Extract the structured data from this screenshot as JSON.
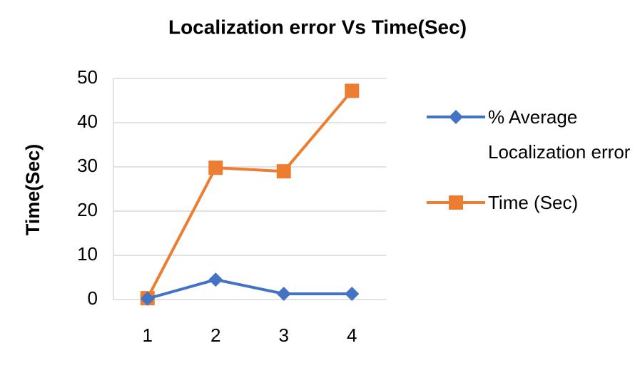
{
  "chart_data": {
    "type": "line",
    "title": "Localization error Vs Time(Sec)",
    "y_label": "Time(Sec)",
    "categories": [
      "1",
      "2",
      "3",
      "4"
    ],
    "series": [
      {
        "name": "% Average Localization error",
        "color": "#4472c4",
        "marker": "diamond",
        "values": [
          0.2,
          4.5,
          1.3,
          1.3
        ]
      },
      {
        "name": "Time (Sec)",
        "color": "#ed7d31",
        "marker": "square",
        "values": [
          0.3,
          29.8,
          29,
          47.2
        ]
      }
    ],
    "ylim": [
      0,
      50
    ],
    "yticks": [
      0,
      10,
      20,
      30,
      40,
      50
    ],
    "grid": true,
    "legend": "right"
  }
}
